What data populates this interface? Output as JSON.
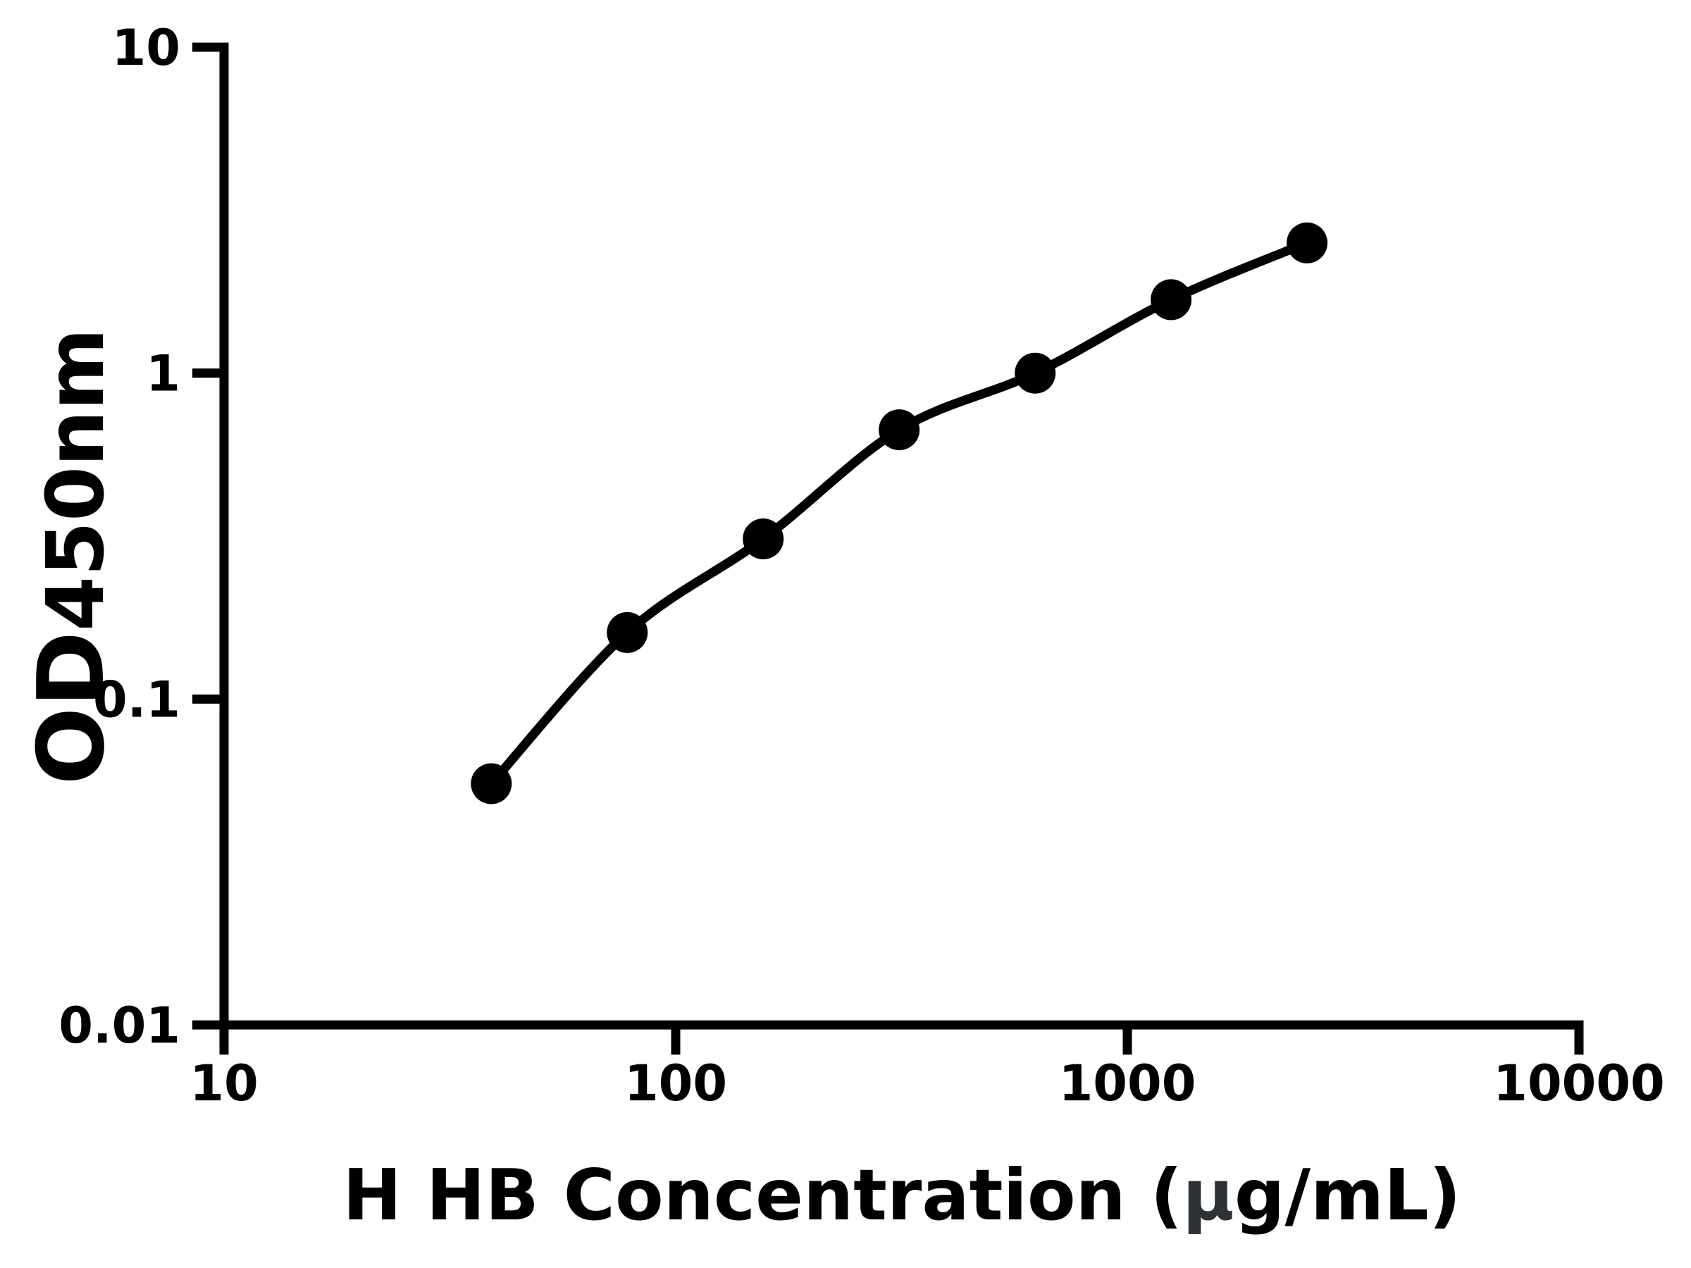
{
  "figure": {
    "background": "#ffffff",
    "x_axis_title": {
      "prefix": "H HB Concentration (",
      "mu": "μ",
      "suffix": "g/mL)"
    },
    "y_axis_title": {
      "main": "OD",
      "sub": "450nm"
    }
  },
  "colors": {
    "axis": "#000000",
    "text": "#000000",
    "mu_text": "#2e3236",
    "curve": "#000000",
    "marker": "#000000",
    "background": "#ffffff"
  },
  "chart_data": {
    "type": "line",
    "title": "",
    "xlabel": "H HB Concentration (μg/mL)",
    "ylabel": "OD450nm",
    "x_scale": "log10",
    "y_scale": "log10",
    "xlim": [
      10,
      10000
    ],
    "ylim": [
      0.01,
      10
    ],
    "x": [
      39.06,
      78.13,
      156.25,
      312.5,
      625,
      1250,
      2500
    ],
    "y": [
      0.055,
      0.16,
      0.31,
      0.67,
      1.0,
      1.68,
      2.51
    ],
    "x_ticks": [
      10,
      100,
      1000,
      10000
    ],
    "x_tick_labels": [
      "10",
      "100",
      "1000",
      "10000"
    ],
    "y_ticks": [
      0.01,
      0.1,
      1,
      10
    ],
    "y_tick_labels": [
      "0.01",
      "0.1",
      "1",
      "10"
    ],
    "grid": false,
    "legend": false,
    "marker_shape": "circle"
  }
}
